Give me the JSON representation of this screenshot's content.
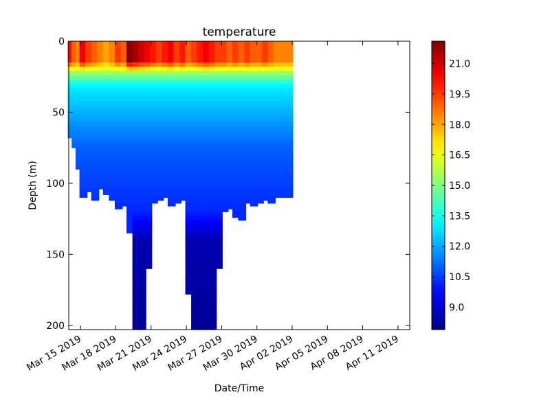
{
  "chart_data": {
    "type": "scatter",
    "title": "temperature",
    "xlabel": "Date/Time",
    "ylabel": "Depth (m)",
    "x_type": "date",
    "xlim": [
      "2019-03-14",
      "2019-04-12"
    ],
    "x_ticks": [
      {
        "date": "2019-03-15",
        "label": "Mar 15 2019"
      },
      {
        "date": "2019-03-18",
        "label": "Mar 18 2019"
      },
      {
        "date": "2019-03-21",
        "label": "Mar 21 2019"
      },
      {
        "date": "2019-03-24",
        "label": "Mar 24 2019"
      },
      {
        "date": "2019-03-27",
        "label": "Mar 27 2019"
      },
      {
        "date": "2019-03-30",
        "label": "Mar 30 2019"
      },
      {
        "date": "2019-04-02",
        "label": "Apr 02 2019"
      },
      {
        "date": "2019-04-05",
        "label": "Apr 05 2019"
      },
      {
        "date": "2019-04-08",
        "label": "Apr 08 2019"
      },
      {
        "date": "2019-04-11",
        "label": "Apr 11 2019"
      }
    ],
    "ylim": [
      203,
      0
    ],
    "y_inverted": true,
    "y_ticks": [
      "0",
      "50",
      "100",
      "150",
      "200"
    ],
    "colorbar": {
      "colormap": "jet",
      "vmin": 7.9,
      "vmax": 22.1,
      "ticks": [
        "9.0",
        "10.5",
        "12.0",
        "13.5",
        "15.0",
        "16.5",
        "18.0",
        "19.5",
        "21.0"
      ]
    },
    "data_start": "2019-03-14",
    "data_end": "2019-04-01",
    "profiles": [
      {
        "date": "2019-03-14",
        "max_depth": 68,
        "surface_temp": 20.0
      },
      {
        "date": "2019-03-14",
        "max_depth": 75,
        "surface_temp": 19.0
      },
      {
        "date": "2019-03-14",
        "max_depth": 90,
        "surface_temp": 18.5
      },
      {
        "date": "2019-03-15",
        "max_depth": 110,
        "surface_temp": 20.5
      },
      {
        "date": "2019-03-15",
        "max_depth": 106,
        "surface_temp": 19.5
      },
      {
        "date": "2019-03-16",
        "max_depth": 112,
        "surface_temp": 19.0
      },
      {
        "date": "2019-03-16",
        "max_depth": 104,
        "surface_temp": 18.5
      },
      {
        "date": "2019-03-17",
        "max_depth": 108,
        "surface_temp": 18.0
      },
      {
        "date": "2019-03-17",
        "max_depth": 112,
        "surface_temp": 18.5
      },
      {
        "date": "2019-03-18",
        "max_depth": 118,
        "surface_temp": 19.5
      },
      {
        "date": "2019-03-18",
        "max_depth": 116,
        "surface_temp": 19.0
      },
      {
        "date": "2019-03-19",
        "max_depth": 135,
        "surface_temp": 22.0
      },
      {
        "date": "2019-03-19",
        "max_depth": 203,
        "surface_temp": 21.5
      },
      {
        "date": "2019-03-20",
        "max_depth": 203,
        "surface_temp": 21.0
      },
      {
        "date": "2019-03-20",
        "max_depth": 160,
        "surface_temp": 20.5
      },
      {
        "date": "2019-03-21",
        "max_depth": 114,
        "surface_temp": 20.0
      },
      {
        "date": "2019-03-21",
        "max_depth": 112,
        "surface_temp": 19.5
      },
      {
        "date": "2019-03-22",
        "max_depth": 110,
        "surface_temp": 20.0
      },
      {
        "date": "2019-03-22",
        "max_depth": 116,
        "surface_temp": 20.5
      },
      {
        "date": "2019-03-23",
        "max_depth": 114,
        "surface_temp": 19.5
      },
      {
        "date": "2019-03-23",
        "max_depth": 112,
        "surface_temp": 20.0
      },
      {
        "date": "2019-03-24",
        "max_depth": 178,
        "surface_temp": 19.0
      },
      {
        "date": "2019-03-24",
        "max_depth": 203,
        "surface_temp": 19.5
      },
      {
        "date": "2019-03-25",
        "max_depth": 203,
        "surface_temp": 20.0
      },
      {
        "date": "2019-03-25",
        "max_depth": 203,
        "surface_temp": 20.5
      },
      {
        "date": "2019-03-26",
        "max_depth": 203,
        "surface_temp": 20.0
      },
      {
        "date": "2019-03-26",
        "max_depth": 160,
        "surface_temp": 19.5
      },
      {
        "date": "2019-03-27",
        "max_depth": 120,
        "surface_temp": 19.5
      },
      {
        "date": "2019-03-27",
        "max_depth": 118,
        "surface_temp": 19.0
      },
      {
        "date": "2019-03-28",
        "max_depth": 124,
        "surface_temp": 19.5
      },
      {
        "date": "2019-03-28",
        "max_depth": 126,
        "surface_temp": 19.0
      },
      {
        "date": "2019-03-29",
        "max_depth": 114,
        "surface_temp": 19.5
      },
      {
        "date": "2019-03-29",
        "max_depth": 116,
        "surface_temp": 19.0
      },
      {
        "date": "2019-03-30",
        "max_depth": 114,
        "surface_temp": 19.0
      },
      {
        "date": "2019-03-30",
        "max_depth": 112,
        "surface_temp": 19.5
      },
      {
        "date": "2019-03-31",
        "max_depth": 114,
        "surface_temp": 19.0
      },
      {
        "date": "2019-03-31",
        "max_depth": 110,
        "surface_temp": 18.5
      },
      {
        "date": "2019-04-01",
        "max_depth": 110,
        "surface_temp": 18.5
      }
    ]
  }
}
